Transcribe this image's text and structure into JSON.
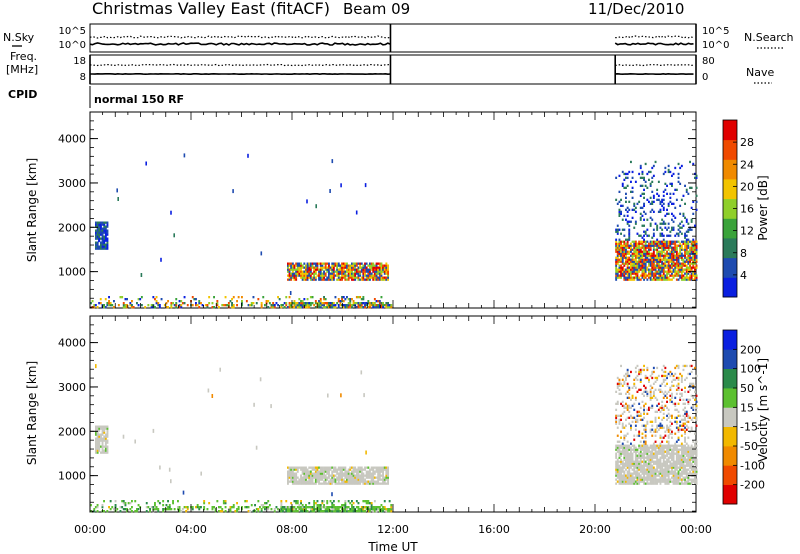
{
  "header": {
    "station": "Christmas Valley East (fitACF)",
    "beam": "Beam 09",
    "date": "11/Dec/2010"
  },
  "strip_panel": {
    "left_label_top": "N.Sky",
    "left_label_mid": "Freq.",
    "left_label_unit": "[MHz]",
    "left_label_bottom": "CPID",
    "right_label_top": "N.Search",
    "right_label_bottom": "Nave",
    "noise_ticks_left": [
      "10^5",
      "10^0"
    ],
    "noise_ticks_right": [
      "10^5",
      "10^0"
    ],
    "freq_ticks_left": [
      "18",
      "8"
    ],
    "nave_ticks_right": [
      "80",
      "0"
    ],
    "cpid_text": "normal 150 RF"
  },
  "colors": {
    "power": [
      "#0a1fe0",
      "#1e4bb0",
      "#2a7a5a",
      "#3aa33a",
      "#8fcf2a",
      "#f2c400",
      "#f08a00",
      "#f04a00",
      "#e00000"
    ],
    "velocity": [
      "#e00000",
      "#f04a00",
      "#f08a00",
      "#f2b800",
      "#c8c8c0",
      "#5cc030",
      "#2a8a4a",
      "#1e4bb0",
      "#0a1fe0"
    ]
  },
  "chart_data": [
    {
      "type": "heatmap",
      "name": "power",
      "ylabel": "Slant Range [km]",
      "yticks": [
        "1000",
        "2000",
        "3000",
        "4000"
      ],
      "ylim": [
        180,
        4600
      ],
      "colorbar_label": "Power [dB]",
      "colorbar_ticks": [
        "4",
        "8",
        "12",
        "16",
        "20",
        "24",
        "28"
      ],
      "clim": [
        0,
        32
      ],
      "regions": [
        {
          "t": [
            0.2,
            0.7
          ],
          "r": [
            1500,
            2100
          ],
          "level": "low"
        },
        {
          "t": [
            7.8,
            11.8
          ],
          "r": [
            800,
            1200
          ],
          "level": "high"
        },
        {
          "t": [
            0.0,
            11.9
          ],
          "r": [
            180,
            450
          ],
          "level": "mixed"
        },
        {
          "t": [
            20.8,
            24.0
          ],
          "r": [
            800,
            1700
          ],
          "level": "high"
        },
        {
          "t": [
            20.8,
            24.0
          ],
          "r": [
            1700,
            3500
          ],
          "level": "low"
        }
      ]
    },
    {
      "type": "heatmap",
      "name": "velocity",
      "xlabel": "Time UT",
      "xticks": [
        "00:00",
        "04:00",
        "08:00",
        "12:00",
        "16:00",
        "20:00",
        "00:00"
      ],
      "xlim": [
        0,
        24
      ],
      "ylabel": "Slant Range [km]",
      "yticks": [
        "1000",
        "2000",
        "3000",
        "4000"
      ],
      "ylim": [
        180,
        4600
      ],
      "colorbar_label": "Velocity [m s^-1]",
      "colorbar_ticks": [
        "-200",
        "-100",
        "-50",
        "-15",
        "15",
        "50",
        "100",
        "200"
      ],
      "clim": [
        -250,
        250
      ],
      "regions": [
        {
          "t": [
            0.2,
            0.7
          ],
          "r": [
            1500,
            2100
          ],
          "level": "ground"
        },
        {
          "t": [
            7.8,
            11.8
          ],
          "r": [
            800,
            1200
          ],
          "level": "ground"
        },
        {
          "t": [
            0.0,
            11.9
          ],
          "r": [
            180,
            450
          ],
          "level": "positive"
        },
        {
          "t": [
            20.8,
            24.0
          ],
          "r": [
            800,
            1700
          ],
          "level": "ground"
        },
        {
          "t": [
            20.8,
            24.0
          ],
          "r": [
            1700,
            3500
          ],
          "level": "mixed"
        }
      ]
    }
  ]
}
